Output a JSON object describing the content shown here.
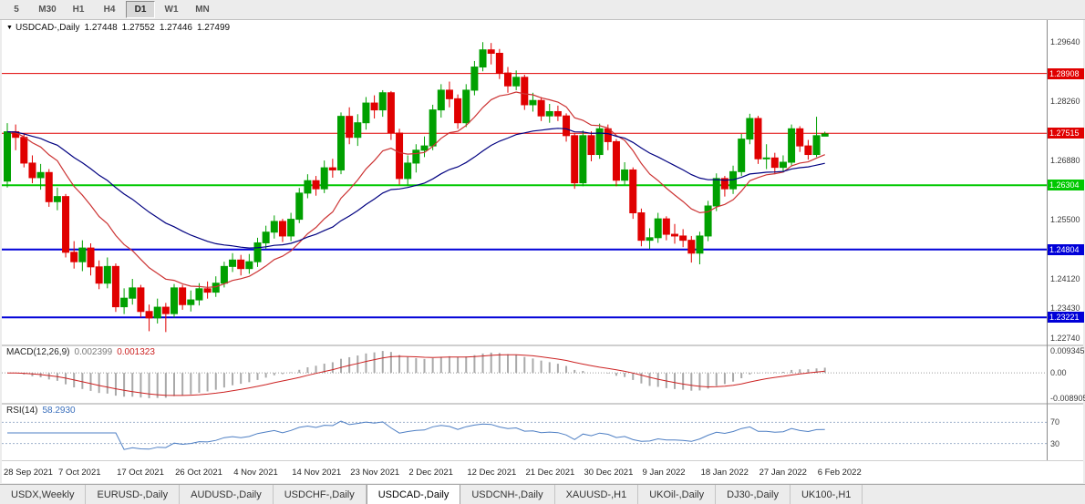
{
  "toolbar": {
    "buttons": [
      {
        "label": "5",
        "active": false
      },
      {
        "label": "M30",
        "active": false
      },
      {
        "label": "H1",
        "active": false
      },
      {
        "label": "H4",
        "active": false
      },
      {
        "label": "D1",
        "active": true
      },
      {
        "label": "W1",
        "active": false
      },
      {
        "label": "MN",
        "active": false
      }
    ]
  },
  "chart": {
    "symbol_period": "USDCAD-,Daily",
    "quote": {
      "open": "1.27448",
      "high": "1.27552",
      "low": "1.27446",
      "close": "1.27499"
    }
  },
  "price_axis": {
    "ticks": [
      {
        "label": "1.29640",
        "value": 1.2964
      },
      {
        "label": "1.28260",
        "value": 1.2826
      },
      {
        "label": "1.26880",
        "value": 1.2688
      },
      {
        "label": "1.25500",
        "value": 1.255
      },
      {
        "label": "1.24120",
        "value": 1.2412
      },
      {
        "label": "1.23430",
        "value": 1.2343
      },
      {
        "label": "1.22740",
        "value": 1.2274
      }
    ]
  },
  "colors": {
    "bull": "#00a000",
    "bear": "#e00000",
    "macd_hist": "#a9a9a9",
    "macd_signal": "#cc2222",
    "rsi_line": "#4e7fc4",
    "rsi_levels": "#9db0cc",
    "separator": "#cfcfcf",
    "axis_line": "#8a8a8a"
  },
  "chart_data": {
    "type": "candlestick",
    "symbol": "USDCAD-",
    "timeframe": "Daily",
    "levels": [
      {
        "value": 1.28908,
        "label": "1.28908",
        "color": "#e00000",
        "width": 1
      },
      {
        "value": 1.27515,
        "label": "1.27515",
        "color": "#e00000",
        "width": 1
      },
      {
        "value": 1.26304,
        "label": "1.26304",
        "color": "#00c800",
        "width": 2
      },
      {
        "value": 1.24804,
        "label": "1.24804",
        "color": "#0000d8",
        "width": 2
      },
      {
        "value": 1.23221,
        "label": "1.23221",
        "color": "#0000d8",
        "width": 2
      }
    ],
    "overlays": [
      {
        "name": "fast-ma",
        "type": "ema",
        "period": 13,
        "color": "#cc3333"
      },
      {
        "name": "slow-ma",
        "type": "ema",
        "period": 34,
        "color": "#000080"
      }
    ],
    "indicators": [
      {
        "name": "MACD",
        "label": "MACD(12,26,9)",
        "fast": 12,
        "slow": 26,
        "smoothing": 9,
        "value_main": "0.002399",
        "value_signal": "0.001323",
        "axis": {
          "top": "0.009345",
          "zero": "0.00",
          "bottom": "-0.008905"
        }
      },
      {
        "name": "RSI",
        "label": "RSI(14)",
        "period": 14,
        "value": "58.2930",
        "levels": [
          70,
          30
        ],
        "axis_labels": [
          "70",
          "30"
        ]
      }
    ],
    "x_labels": [
      {
        "i": 0,
        "label": "28 Sep 2021"
      },
      {
        "i": 7,
        "label": "7 Oct 2021"
      },
      {
        "i": 14,
        "label": "17 Oct 2021"
      },
      {
        "i": 21,
        "label": "26 Oct 2021"
      },
      {
        "i": 28,
        "label": "4 Nov 2021"
      },
      {
        "i": 35,
        "label": "14 Nov 2021"
      },
      {
        "i": 42,
        "label": "23 Nov 2021"
      },
      {
        "i": 49,
        "label": "2 Dec 2021"
      },
      {
        "i": 56,
        "label": "12 Dec 2021"
      },
      {
        "i": 63,
        "label": "21 Dec 2021"
      },
      {
        "i": 70,
        "label": "30 Dec 2021"
      },
      {
        "i": 77,
        "label": "9 Jan 2022"
      },
      {
        "i": 84,
        "label": "18 Jan 2022"
      },
      {
        "i": 91,
        "label": "27 Jan 2022"
      },
      {
        "i": 98,
        "label": "6 Feb 2022"
      }
    ],
    "candles": [
      [
        1.264,
        1.2775,
        1.2625,
        1.2755
      ],
      [
        1.2755,
        1.2772,
        1.2712,
        1.2742
      ],
      [
        1.2742,
        1.2752,
        1.2672,
        1.2682
      ],
      [
        1.2682,
        1.27,
        1.2635,
        1.2648
      ],
      [
        1.2648,
        1.268,
        1.262,
        1.266
      ],
      [
        1.266,
        1.2668,
        1.258,
        1.2592
      ],
      [
        1.2592,
        1.2625,
        1.2572,
        1.2604
      ],
      [
        1.2604,
        1.261,
        1.2462,
        1.2474
      ],
      [
        1.2474,
        1.25,
        1.2436,
        1.2452
      ],
      [
        1.2452,
        1.2502,
        1.243,
        1.2484
      ],
      [
        1.2484,
        1.2495,
        1.242,
        1.244
      ],
      [
        1.244,
        1.2455,
        1.2388,
        1.2402
      ],
      [
        1.2402,
        1.2462,
        1.239,
        1.2441
      ],
      [
        1.2441,
        1.2448,
        1.2335,
        1.2347
      ],
      [
        1.2347,
        1.239,
        1.233,
        1.2367
      ],
      [
        1.2367,
        1.2412,
        1.2352,
        1.2391
      ],
      [
        1.2391,
        1.2398,
        1.2322,
        1.2336
      ],
      [
        1.2336,
        1.2352,
        1.229,
        1.2321
      ],
      [
        1.2321,
        1.2366,
        1.2308,
        1.2346
      ],
      [
        1.2346,
        1.2356,
        1.2288,
        1.2331
      ],
      [
        1.2331,
        1.24,
        1.2322,
        1.2391
      ],
      [
        1.2391,
        1.2398,
        1.234,
        1.2352
      ],
      [
        1.2352,
        1.2385,
        1.2336,
        1.2363
      ],
      [
        1.2363,
        1.2402,
        1.235,
        1.2389
      ],
      [
        1.2389,
        1.2406,
        1.2366,
        1.2381
      ],
      [
        1.2381,
        1.2418,
        1.237,
        1.2402
      ],
      [
        1.2402,
        1.2452,
        1.2392,
        1.2441
      ],
      [
        1.2441,
        1.2472,
        1.2428,
        1.2456
      ],
      [
        1.2456,
        1.2468,
        1.242,
        1.2436
      ],
      [
        1.2436,
        1.247,
        1.2424,
        1.2452
      ],
      [
        1.2452,
        1.2508,
        1.244,
        1.2496
      ],
      [
        1.2496,
        1.2536,
        1.2482,
        1.2521
      ],
      [
        1.2521,
        1.256,
        1.2506,
        1.2546
      ],
      [
        1.2546,
        1.2552,
        1.2498,
        1.2512
      ],
      [
        1.2512,
        1.2566,
        1.25,
        1.2551
      ],
      [
        1.2551,
        1.2624,
        1.2542,
        1.2612
      ],
      [
        1.2612,
        1.2656,
        1.26,
        1.2641
      ],
      [
        1.2641,
        1.2652,
        1.2606,
        1.2622
      ],
      [
        1.2622,
        1.2688,
        1.2612,
        1.2671
      ],
      [
        1.2671,
        1.2692,
        1.2648,
        1.2666
      ],
      [
        1.2666,
        1.28,
        1.2656,
        1.2791
      ],
      [
        1.2791,
        1.2812,
        1.2726,
        1.2742
      ],
      [
        1.2742,
        1.2796,
        1.2722,
        1.2776
      ],
      [
        1.2776,
        1.2836,
        1.276,
        1.2822
      ],
      [
        1.2822,
        1.284,
        1.2786,
        1.2806
      ],
      [
        1.2806,
        1.2852,
        1.279,
        1.2846
      ],
      [
        1.2846,
        1.285,
        1.2736,
        1.2752
      ],
      [
        1.2752,
        1.2762,
        1.2632,
        1.2646
      ],
      [
        1.2646,
        1.27,
        1.2628,
        1.2682
      ],
      [
        1.2682,
        1.2726,
        1.266,
        1.2712
      ],
      [
        1.2712,
        1.2744,
        1.2696,
        1.2722
      ],
      [
        1.2722,
        1.2818,
        1.2712,
        1.2806
      ],
      [
        1.2806,
        1.2866,
        1.2788,
        1.2852
      ],
      [
        1.2852,
        1.2872,
        1.2812,
        1.2832
      ],
      [
        1.2832,
        1.2842,
        1.2762,
        1.2776
      ],
      [
        1.2776,
        1.2866,
        1.2766,
        1.2852
      ],
      [
        1.2852,
        1.292,
        1.284,
        1.2906
      ],
      [
        1.2906,
        1.2964,
        1.2896,
        1.2946
      ],
      [
        1.2946,
        1.2962,
        1.2912,
        1.2938
      ],
      [
        1.2938,
        1.2948,
        1.2878,
        1.2892
      ],
      [
        1.2892,
        1.2906,
        1.2846,
        1.2862
      ],
      [
        1.2862,
        1.2898,
        1.2852,
        1.2882
      ],
      [
        1.2882,
        1.2888,
        1.2806,
        1.2818
      ],
      [
        1.2818,
        1.2846,
        1.2802,
        1.2828
      ],
      [
        1.2828,
        1.2836,
        1.278,
        1.2792
      ],
      [
        1.2792,
        1.282,
        1.2776,
        1.2802
      ],
      [
        1.2802,
        1.2816,
        1.278,
        1.2792
      ],
      [
        1.2792,
        1.2798,
        1.2732,
        1.2746
      ],
      [
        1.2746,
        1.2752,
        1.2622,
        1.2636
      ],
      [
        1.2636,
        1.2758,
        1.2628,
        1.2746
      ],
      [
        1.2746,
        1.2756,
        1.2686,
        1.2702
      ],
      [
        1.2702,
        1.2774,
        1.2692,
        1.2762
      ],
      [
        1.2762,
        1.2772,
        1.2712,
        1.2732
      ],
      [
        1.2732,
        1.2738,
        1.2628,
        1.2642
      ],
      [
        1.2642,
        1.2684,
        1.2632,
        1.2666
      ],
      [
        1.2666,
        1.2672,
        1.2552,
        1.2566
      ],
      [
        1.2566,
        1.2576,
        1.2488,
        1.2502
      ],
      [
        1.2502,
        1.253,
        1.2482,
        1.2508
      ],
      [
        1.2508,
        1.2566,
        1.2496,
        1.2552
      ],
      [
        1.2552,
        1.2558,
        1.2502,
        1.2516
      ],
      [
        1.2516,
        1.254,
        1.2494,
        1.2512
      ],
      [
        1.2512,
        1.2528,
        1.2486,
        1.2502
      ],
      [
        1.2502,
        1.2512,
        1.245,
        1.2472
      ],
      [
        1.2472,
        1.2522,
        1.2446,
        1.2512
      ],
      [
        1.2512,
        1.2594,
        1.25,
        1.2582
      ],
      [
        1.2582,
        1.2658,
        1.257,
        1.2646
      ],
      [
        1.2646,
        1.2652,
        1.2604,
        1.2622
      ],
      [
        1.2622,
        1.2676,
        1.261,
        1.2662
      ],
      [
        1.2662,
        1.275,
        1.2652,
        1.2738
      ],
      [
        1.2738,
        1.2797,
        1.2726,
        1.2786
      ],
      [
        1.2786,
        1.2792,
        1.268,
        1.2692
      ],
      [
        1.2692,
        1.2726,
        1.2668,
        1.2694
      ],
      [
        1.2694,
        1.2706,
        1.2656,
        1.2672
      ],
      [
        1.2672,
        1.27,
        1.266,
        1.2684
      ],
      [
        1.2684,
        1.2772,
        1.2676,
        1.2762
      ],
      [
        1.2762,
        1.2768,
        1.2708,
        1.2722
      ],
      [
        1.2722,
        1.2736,
        1.269,
        1.2702
      ],
      [
        1.2702,
        1.279,
        1.2696,
        1.2746
      ],
      [
        1.27448,
        1.27552,
        1.27446,
        1.27499
      ]
    ]
  },
  "tabs": {
    "items": [
      {
        "label": "USDX,Weekly",
        "active": false
      },
      {
        "label": "EURUSD-,Daily",
        "active": false
      },
      {
        "label": "AUDUSD-,Daily",
        "active": false
      },
      {
        "label": "USDCHF-,Daily",
        "active": false
      },
      {
        "label": "USDCAD-,Daily",
        "active": true
      },
      {
        "label": "USDCNH-,Daily",
        "active": false
      },
      {
        "label": "XAUUSD-,H1",
        "active": false
      },
      {
        "label": "UKOil-,Daily",
        "active": false
      },
      {
        "label": "DJ30-,Daily",
        "active": false
      },
      {
        "label": "UK100-,H1",
        "active": false
      }
    ]
  }
}
